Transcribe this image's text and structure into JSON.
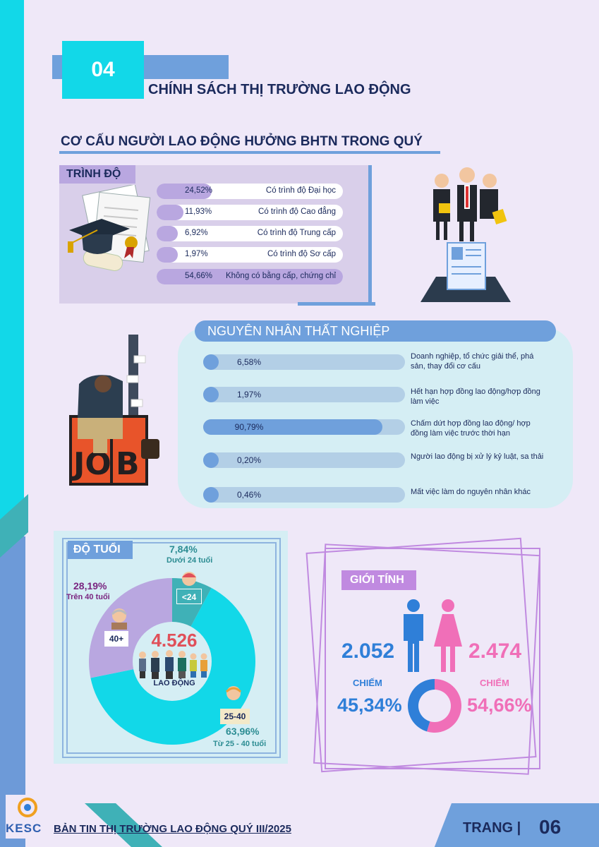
{
  "header": {
    "number": "04",
    "title": "CHÍNH SÁCH THỊ TRƯỜNG LAO ĐỘNG"
  },
  "section_title": "CƠ CẤU NGƯỜI LAO ĐỘNG HƯỞNG BHTN TRONG QUÝ",
  "education": {
    "tag": "TRÌNH ĐỘ",
    "rows": [
      {
        "pct": "24,52%",
        "label": "Có trình độ Đại học",
        "value": 24.52
      },
      {
        "pct": "11,93%",
        "label": "Có trình độ Cao đẳng",
        "value": 11.93
      },
      {
        "pct": "6,92%",
        "label": "Có trình độ Trung cấp",
        "value": 6.92
      },
      {
        "pct": "1,97%",
        "label": "Có trình độ Sơ cấp",
        "value": 1.97
      },
      {
        "pct": "54,66%",
        "label": "Không có bằng cấp, chứng chỉ",
        "value": 54.66
      }
    ]
  },
  "causes": {
    "title": "NGUYÊN NHÂN THẤT NGHIỆP",
    "rows": [
      {
        "pct": "6,58%",
        "label": "Doanh nghiệp, tổ chức giải thể, phá sản, thay đổi cơ cấu",
        "value": 6.58
      },
      {
        "pct": "1,97%",
        "label": "Hết hạn hợp đồng lao động/hợp đồng làm việc",
        "value": 1.97
      },
      {
        "pct": "90,79%",
        "label": "Chấm dứt hợp đồng lao động/ hợp đồng làm việc trước thời hạn",
        "value": 90.79
      },
      {
        "pct": "0,20%",
        "label": "Người lao động bị xử lý kỷ luật, sa thải",
        "value": 0.2
      },
      {
        "pct": "0,46%",
        "label": "Mất việc làm do nguyên nhân khác",
        "value": 0.46
      }
    ]
  },
  "age": {
    "tag": "ĐỘ TUỔI",
    "total": "4.526",
    "total_label": "LAO ĐỘNG",
    "groups": [
      {
        "pct": "7,84%",
        "label": "Dưới 24 tuổi",
        "badge": "<24",
        "value": 7.84,
        "color": "#3fb1b7"
      },
      {
        "pct": "63,96%",
        "label": "Từ 25 - 40 tuổi",
        "badge": "25-40",
        "value": 63.96,
        "color": "#12d8e8"
      },
      {
        "pct": "28,19%",
        "label": "Trên 40 tuổi",
        "badge": "40+",
        "value": 28.19,
        "color": "#b9a7e0"
      }
    ]
  },
  "gender": {
    "tag": "GIỚI TÍNH",
    "male": {
      "count": "2.052",
      "chiem": "CHIẾM",
      "pct": "45,34%",
      "value": 45.34,
      "color": "#2f7fd8"
    },
    "female": {
      "count": "2.474",
      "chiem": "CHIẾM",
      "pct": "54,66%",
      "value": 54.66,
      "color": "#f06fb8"
    }
  },
  "footer": {
    "logo": "KESC",
    "title": "BẢN TIN THỊ TRƯỜNG LAO ĐỘNG QUÝ III/2025",
    "page_label": "TRANG |",
    "page": "06"
  }
}
